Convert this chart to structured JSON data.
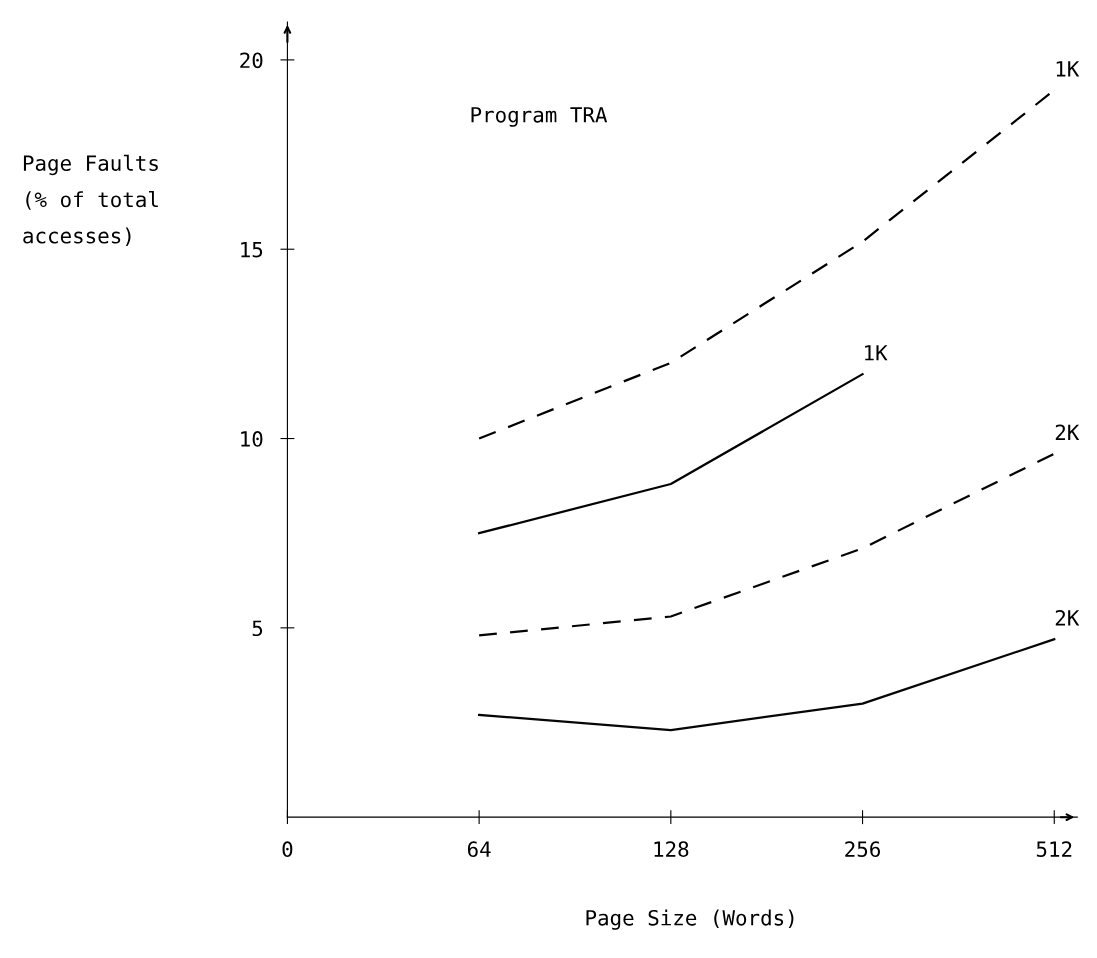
{
  "chart_data": {
    "type": "line",
    "title": "Program TRA",
    "xlabel": "Page Size (Words)",
    "ylabel": "Page Faults\n(% of total\naccesses)",
    "categories": [
      "0",
      "64",
      "128",
      "256",
      "512"
    ],
    "series": [
      {
        "name": "1K",
        "color": "#000000",
        "line_style": "dashed",
        "values": [
          null,
          10.0,
          12.0,
          15.2,
          19.2
        ]
      },
      {
        "name": "1K",
        "color": "#020202",
        "line_style": "solid",
        "values": [
          null,
          7.5,
          8.8,
          11.7,
          null
        ]
      },
      {
        "name": "2K",
        "color": "#040404",
        "line_style": "dashed",
        "values": [
          null,
          4.8,
          5.3,
          7.1,
          9.6
        ]
      },
      {
        "name": "2K",
        "color": "#060606",
        "line_style": "solid",
        "values": [
          null,
          2.7,
          2.3,
          3.0,
          4.7
        ]
      }
    ],
    "ylim": [
      0,
      21
    ],
    "yticks": [
      5,
      10,
      15,
      20
    ],
    "grid": false,
    "legend": false,
    "marker": "none"
  }
}
